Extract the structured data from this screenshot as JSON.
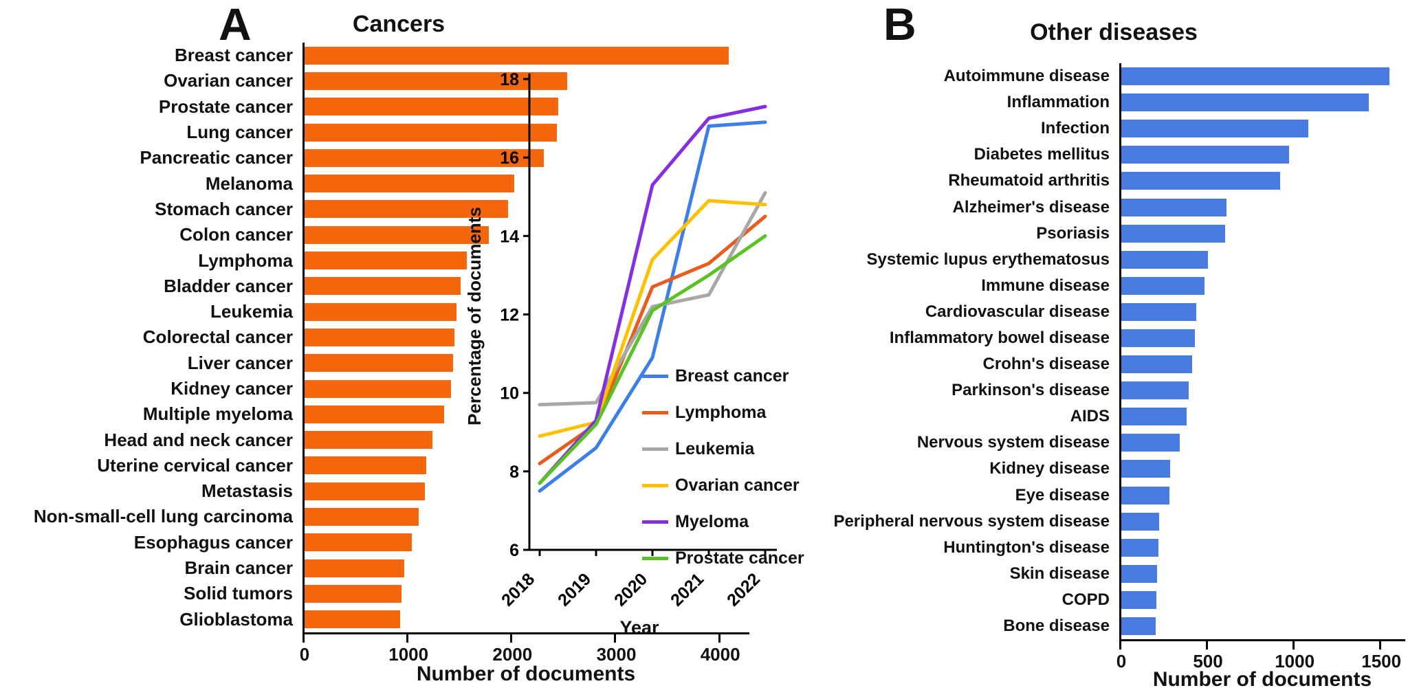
{
  "figure": {
    "background": "#ffffff"
  },
  "chart_data": [
    {
      "id": "cancers-bar",
      "type": "bar",
      "orientation": "horizontal",
      "panel_letter": "A",
      "title": "Cancers",
      "xlabel": "Number of documents",
      "bar_color": "#F4670D",
      "grid": false,
      "xlim": [
        0,
        4300
      ],
      "xticks": [
        0,
        1000,
        2000,
        3000,
        4000
      ],
      "categories": [
        "Breast cancer",
        "Ovarian cancer",
        "Prostate cancer",
        "Lung cancer",
        "Pancreatic cancer",
        "Melanoma",
        "Stomach cancer",
        "Colon cancer",
        "Lymphoma",
        "Bladder cancer",
        "Leukemia",
        "Colorectal cancer",
        "Liver cancer",
        "Kidney cancer",
        "Multiple myeloma",
        "Head and neck cancer",
        "Uterine cervical cancer",
        "Metastasis",
        "Non-small-cell lung carcinoma",
        "Esophagus cancer",
        "Brain cancer",
        "Solid tumors",
        "Glioblastoma"
      ],
      "values": [
        4100,
        2550,
        2460,
        2450,
        2320,
        2040,
        1980,
        1790,
        1580,
        1520,
        1480,
        1460,
        1450,
        1430,
        1360,
        1250,
        1190,
        1180,
        1120,
        1050,
        980,
        950,
        940
      ]
    },
    {
      "id": "cancer-trends-line",
      "type": "line",
      "panel": "A-inset",
      "title": "",
      "xlabel": "Year",
      "ylabel": "Percentage of documents",
      "x": [
        "2018",
        "2019",
        "2020",
        "2021",
        "2022"
      ],
      "ylim": [
        6,
        18
      ],
      "yticks": [
        6,
        8,
        10,
        12,
        14,
        16,
        18
      ],
      "grid": false,
      "legend_position": "inside-right",
      "series": [
        {
          "name": "Breast cancer",
          "color": "#3D7EE8",
          "values": [
            7.5,
            8.6,
            10.9,
            16.8,
            16.9
          ]
        },
        {
          "name": "Lymphoma",
          "color": "#E85C1E",
          "values": [
            8.2,
            9.2,
            12.7,
            13.3,
            14.5
          ]
        },
        {
          "name": "Leukemia",
          "color": "#A8A8A8",
          "values": [
            9.7,
            9.75,
            12.2,
            12.5,
            15.1
          ]
        },
        {
          "name": "Ovarian cancer",
          "color": "#FFC000",
          "values": [
            8.9,
            9.25,
            13.4,
            14.9,
            14.8
          ]
        },
        {
          "name": "Myeloma",
          "color": "#8430E0",
          "values": [
            7.7,
            9.3,
            15.3,
            17.0,
            17.3
          ]
        },
        {
          "name": "Prostate cancer",
          "color": "#5BC226",
          "values": [
            7.7,
            9.2,
            12.1,
            13.0,
            14.0
          ]
        }
      ]
    },
    {
      "id": "other-diseases-bar",
      "type": "bar",
      "orientation": "horizontal",
      "panel_letter": "B",
      "title": "Other diseases",
      "xlabel": "Number of documents",
      "bar_color": "#4A7BE0",
      "grid": false,
      "xlim": [
        0,
        1650
      ],
      "xticks": [
        0,
        500,
        1000,
        1500
      ],
      "categories": [
        "Autoimmune disease",
        "Inflammation",
        "Infection",
        "Diabetes mellitus",
        "Rheumatoid arthritis",
        "Alzheimer's disease",
        "Psoriasis",
        "Systemic lupus erythematosus",
        "Immune disease",
        "Cardiovascular disease",
        "Inflammatory bowel disease",
        "Crohn's disease",
        "Parkinson's disease",
        "AIDS",
        "Nervous system disease",
        "Kidney disease",
        "Eye disease",
        "Peripheral nervous system disease",
        "Huntington's disease",
        "Skin disease",
        "COPD",
        "Bone disease"
      ],
      "values": [
        1560,
        1440,
        1090,
        980,
        930,
        620,
        610,
        510,
        490,
        445,
        435,
        420,
        400,
        390,
        350,
        295,
        290,
        230,
        225,
        220,
        215,
        210
      ]
    }
  ]
}
